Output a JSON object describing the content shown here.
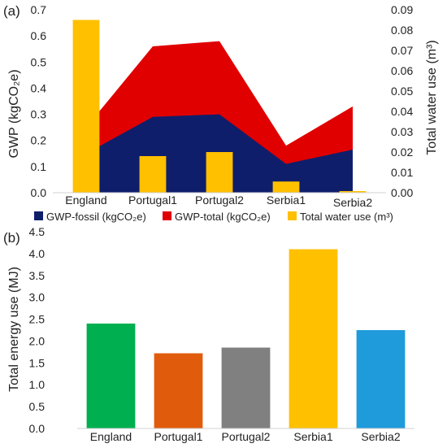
{
  "chart_data": [
    {
      "type": "area",
      "panel_label": "(a)",
      "categories": [
        "England",
        "Portugal1",
        "Portugal2",
        "Serbia1",
        "Serbia2"
      ],
      "ylabel": "GWP (kgCO₂e)",
      "ylim": [
        0,
        0.7
      ],
      "yticks": [
        "0.0",
        "0.1",
        "0.2",
        "0.3",
        "0.4",
        "0.5",
        "0.6",
        "0.7"
      ],
      "y2label": "Total water use (m³)",
      "y2lim": [
        0,
        0.09
      ],
      "y2ticks": [
        "0.00",
        "0.01",
        "0.02",
        "0.03",
        "0.04",
        "0.05",
        "0.06",
        "0.07",
        "0.08",
        "0.09"
      ],
      "series": [
        {
          "name": "GWP-fossil (kgCO₂e)",
          "type": "area",
          "axis": "left",
          "color": "#0f1e6b",
          "values": [
            0.15,
            0.29,
            0.3,
            0.11,
            0.165
          ]
        },
        {
          "name": "GWP-total (kgCO₂e)",
          "type": "area",
          "axis": "left",
          "color": "#e00000",
          "values": [
            0.25,
            0.56,
            0.58,
            0.18,
            0.33
          ]
        },
        {
          "name": "Total water use (m³)",
          "type": "bar",
          "axis": "right",
          "color": "#ffc000",
          "values": [
            0.085,
            0.018,
            0.02,
            0.0055,
            0.0008
          ]
        }
      ],
      "legend_position": "bottom",
      "grid": false
    },
    {
      "type": "bar",
      "panel_label": "(b)",
      "categories": [
        "England",
        "Portugal1",
        "Portugal2",
        "Serbia1",
        "Serbia2"
      ],
      "ylabel": "Total energy use (MJ)",
      "ylim": [
        0,
        4.5
      ],
      "yticks": [
        "0.0",
        "0.5",
        "1.0",
        "1.5",
        "2.0",
        "2.5",
        "3.0",
        "3.5",
        "4.0",
        "4.5"
      ],
      "values": [
        2.4,
        1.72,
        1.85,
        4.1,
        2.25
      ],
      "colors": [
        "#00b050",
        "#e05c0c",
        "#808080",
        "#ffc000",
        "#1f9bdb"
      ],
      "grid": false
    }
  ]
}
